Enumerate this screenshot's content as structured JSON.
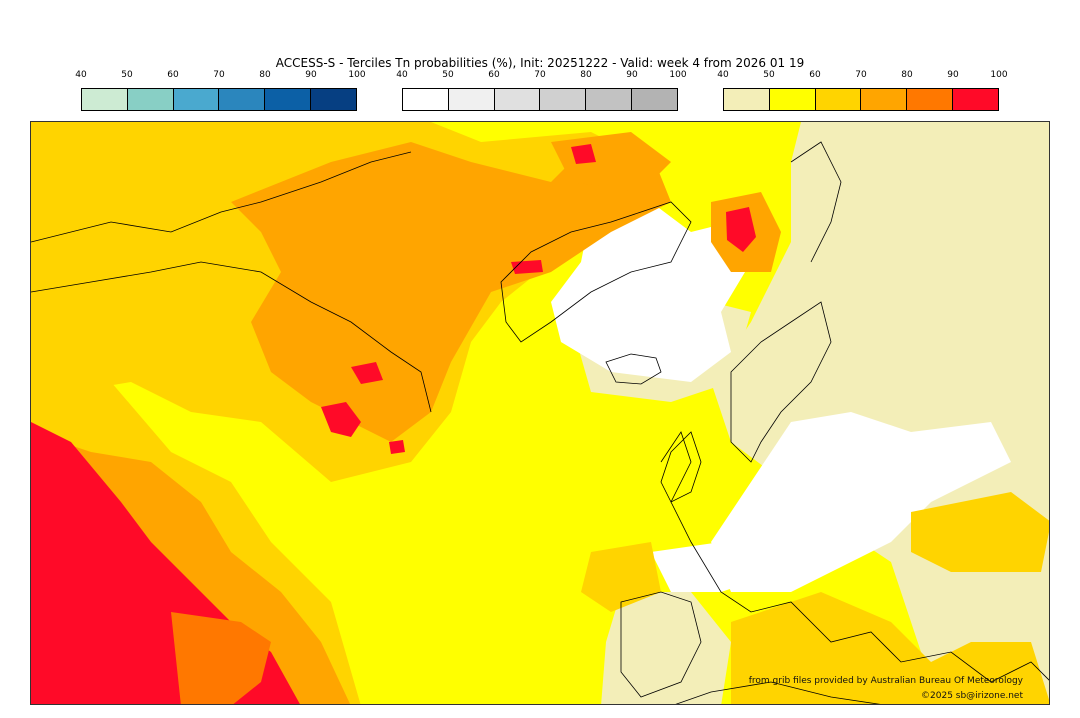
{
  "title": "ACCESS-S - Terciles Tn probabilities (%), Init: 20251222 - Valid: week 4 from 2026 01 19",
  "legends": [
    {
      "id": "below",
      "ticks": [
        "40",
        "50",
        "60",
        "70",
        "80",
        "90",
        "100"
      ],
      "colors": [
        "#cdebd3",
        "#88cfc5",
        "#4aa9cf",
        "#2b86bd",
        "#0c60a6",
        "#063f82"
      ]
    },
    {
      "id": "normal",
      "ticks": [
        "40",
        "50",
        "60",
        "70",
        "80",
        "90",
        "100"
      ],
      "colors": [
        "#ffffff",
        "#f0f0f0",
        "#e0e0e0",
        "#d0d0d0",
        "#c2c2c2",
        "#b3b3b3"
      ]
    },
    {
      "id": "above",
      "ticks": [
        "40",
        "50",
        "60",
        "70",
        "80",
        "90",
        "100"
      ],
      "colors": [
        "#f3eeb8",
        "#ffff00",
        "#ffd400",
        "#ffa500",
        "#ff7800",
        "#ff0a28"
      ]
    }
  ],
  "map": {
    "base_color": "#ffff00",
    "level_colors": {
      "above_40_50": "#f3eeb8",
      "above_50_60": "#ffff00",
      "above_60_70": "#ffd400",
      "above_70_80": "#ffa500",
      "above_80_90": "#ff7800",
      "above_90_100": "#ff0a28",
      "normal_40_50": "#ffffff",
      "normal_50_60": "#f0f0f0"
    }
  },
  "credits": {
    "source": "from grib files provided by Australian Bureau Of Meteorology",
    "copyright": "©2025 sb@irizone.net"
  }
}
